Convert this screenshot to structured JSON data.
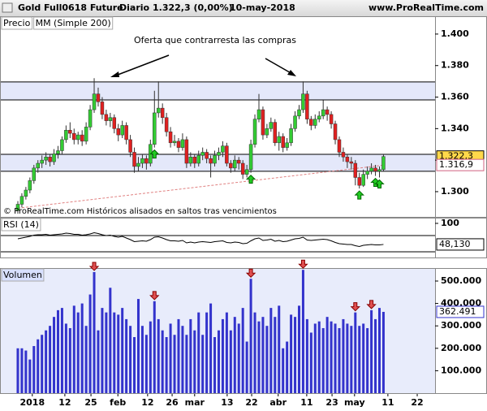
{
  "header": {
    "title": "Gold Full0618 Future",
    "period": "Diario",
    "quote": "1.322,3 (0,00%)",
    "date": "10-may-2018",
    "site": "www.ProRealTime.com"
  },
  "chart_data": [
    {
      "type": "candlestick",
      "label": "Precio",
      "ma_label": "MM (Simple 200)",
      "annotation": "Oferta que contrarresta las compras",
      "footer": "© ProRealTime.com Históricos alisados en saltos tras vencimientos",
      "up_color": "#33cc33",
      "down_color": "#e02020",
      "ma_color": "#e08080",
      "band_color": "#e4e8fa",
      "ohlc": [
        [
          1.288,
          1.294,
          1.286,
          1.292
        ],
        [
          1.292,
          1.299,
          1.29,
          1.297
        ],
        [
          1.297,
          1.303,
          1.295,
          1.301
        ],
        [
          1.301,
          1.309,
          1.299,
          1.307
        ],
        [
          1.307,
          1.317,
          1.305,
          1.315
        ],
        [
          1.315,
          1.32,
          1.312,
          1.318
        ],
        [
          1.318,
          1.323,
          1.315,
          1.32
        ],
        [
          1.32,
          1.325,
          1.317,
          1.322
        ],
        [
          1.322,
          1.324,
          1.316,
          1.319
        ],
        [
          1.319,
          1.327,
          1.317,
          1.324
        ],
        [
          1.324,
          1.329,
          1.321,
          1.326
        ],
        [
          1.326,
          1.335,
          1.324,
          1.333
        ],
        [
          1.333,
          1.342,
          1.331,
          1.339
        ],
        [
          1.339,
          1.344,
          1.334,
          1.337
        ],
        [
          1.337,
          1.34,
          1.33,
          1.333
        ],
        [
          1.333,
          1.338,
          1.33,
          1.336
        ],
        [
          1.336,
          1.339,
          1.329,
          1.332
        ],
        [
          1.332,
          1.344,
          1.33,
          1.341
        ],
        [
          1.341,
          1.355,
          1.339,
          1.352
        ],
        [
          1.352,
          1.372,
          1.35,
          1.362
        ],
        [
          1.362,
          1.366,
          1.354,
          1.357
        ],
        [
          1.357,
          1.36,
          1.346,
          1.349
        ],
        [
          1.349,
          1.352,
          1.342,
          1.345
        ],
        [
          1.345,
          1.35,
          1.341,
          1.347
        ],
        [
          1.347,
          1.349,
          1.337,
          1.34
        ],
        [
          1.34,
          1.343,
          1.332,
          1.336
        ],
        [
          1.336,
          1.345,
          1.334,
          1.342
        ],
        [
          1.342,
          1.344,
          1.33,
          1.333
        ],
        [
          1.333,
          1.336,
          1.322,
          1.325
        ],
        [
          1.325,
          1.328,
          1.312,
          1.316
        ],
        [
          1.316,
          1.322,
          1.313,
          1.318
        ],
        [
          1.318,
          1.324,
          1.315,
          1.321
        ],
        [
          1.321,
          1.323,
          1.314,
          1.318
        ],
        [
          1.318,
          1.333,
          1.316,
          1.33
        ],
        [
          1.33,
          1.364,
          1.328,
          1.35
        ],
        [
          1.35,
          1.37,
          1.347,
          1.353
        ],
        [
          1.353,
          1.356,
          1.343,
          1.347
        ],
        [
          1.347,
          1.35,
          1.335,
          1.338
        ],
        [
          1.338,
          1.341,
          1.328,
          1.331
        ],
        [
          1.331,
          1.336,
          1.329,
          1.332
        ],
        [
          1.332,
          1.334,
          1.325,
          1.328
        ],
        [
          1.328,
          1.337,
          1.326,
          1.333
        ],
        [
          1.333,
          1.335,
          1.315,
          1.318
        ],
        [
          1.318,
          1.325,
          1.316,
          1.322
        ],
        [
          1.322,
          1.324,
          1.315,
          1.318
        ],
        [
          1.318,
          1.326,
          1.316,
          1.323
        ],
        [
          1.323,
          1.328,
          1.32,
          1.325
        ],
        [
          1.325,
          1.327,
          1.318,
          1.321
        ],
        [
          1.321,
          1.323,
          1.309,
          1.318
        ],
        [
          1.318,
          1.326,
          1.316,
          1.323
        ],
        [
          1.323,
          1.328,
          1.32,
          1.325
        ],
        [
          1.325,
          1.332,
          1.322,
          1.329
        ],
        [
          1.329,
          1.331,
          1.316,
          1.318
        ],
        [
          1.318,
          1.32,
          1.312,
          1.315
        ],
        [
          1.315,
          1.323,
          1.313,
          1.32
        ],
        [
          1.32,
          1.322,
          1.314,
          1.318
        ],
        [
          1.318,
          1.32,
          1.308,
          1.311
        ],
        [
          1.311,
          1.317,
          1.309,
          1.314
        ],
        [
          1.314,
          1.333,
          1.312,
          1.33
        ],
        [
          1.33,
          1.349,
          1.328,
          1.346
        ],
        [
          1.346,
          1.362,
          1.344,
          1.352
        ],
        [
          1.352,
          1.354,
          1.333,
          1.336
        ],
        [
          1.336,
          1.343,
          1.334,
          1.34
        ],
        [
          1.34,
          1.347,
          1.338,
          1.344
        ],
        [
          1.344,
          1.346,
          1.329,
          1.331
        ],
        [
          1.331,
          1.338,
          1.326,
          1.335
        ],
        [
          1.335,
          1.337,
          1.325,
          1.328
        ],
        [
          1.328,
          1.334,
          1.326,
          1.331
        ],
        [
          1.331,
          1.343,
          1.329,
          1.34
        ],
        [
          1.34,
          1.351,
          1.338,
          1.348
        ],
        [
          1.348,
          1.355,
          1.346,
          1.352
        ],
        [
          1.352,
          1.37,
          1.35,
          1.362
        ],
        [
          1.362,
          1.364,
          1.343,
          1.346
        ],
        [
          1.346,
          1.348,
          1.339,
          1.342
        ],
        [
          1.342,
          1.349,
          1.34,
          1.346
        ],
        [
          1.346,
          1.351,
          1.344,
          1.348
        ],
        [
          1.348,
          1.358,
          1.346,
          1.352
        ],
        [
          1.352,
          1.354,
          1.345,
          1.349
        ],
        [
          1.349,
          1.351,
          1.34,
          1.343
        ],
        [
          1.343,
          1.345,
          1.33,
          1.333
        ],
        [
          1.333,
          1.335,
          1.322,
          1.325
        ],
        [
          1.325,
          1.328,
          1.319,
          1.322
        ],
        [
          1.322,
          1.324,
          1.315,
          1.319
        ],
        [
          1.319,
          1.322,
          1.314,
          1.318
        ],
        [
          1.318,
          1.32,
          1.304,
          1.309
        ],
        [
          1.309,
          1.312,
          1.302,
          1.304
        ],
        [
          1.304,
          1.314,
          1.303,
          1.311
        ],
        [
          1.311,
          1.316,
          1.308,
          1.313
        ],
        [
          1.313,
          1.318,
          1.311,
          1.315
        ],
        [
          1.315,
          1.317,
          1.31,
          1.313
        ],
        [
          1.313,
          1.316,
          1.309,
          1.314
        ],
        [
          1.314,
          1.324,
          1.313,
          1.3223
        ]
      ],
      "ma": [
        1.2895,
        1.2898,
        1.2901,
        1.2904,
        1.2907,
        1.291,
        1.2913,
        1.2916,
        1.2919,
        1.2922,
        1.2925,
        1.2928,
        1.2931,
        1.2934,
        1.2937,
        1.294,
        1.2943,
        1.2946,
        1.2949,
        1.2952,
        1.2955,
        1.2958,
        1.2961,
        1.2964,
        1.2967,
        1.297,
        1.2973,
        1.2976,
        1.2979,
        1.2982,
        1.2985,
        1.2988,
        1.2991,
        1.2994,
        1.2997,
        1.3,
        1.3003,
        1.3006,
        1.3009,
        1.3012,
        1.3015,
        1.3018,
        1.3021,
        1.3024,
        1.3027,
        1.303,
        1.3033,
        1.3036,
        1.3039,
        1.3042,
        1.3045,
        1.3048,
        1.3051,
        1.3054,
        1.3057,
        1.306,
        1.3063,
        1.3066,
        1.3069,
        1.3072,
        1.3075,
        1.3078,
        1.3081,
        1.3084,
        1.3087,
        1.309,
        1.3093,
        1.3096,
        1.3099,
        1.3102,
        1.3105,
        1.3108,
        1.3111,
        1.3114,
        1.3117,
        1.312,
        1.3123,
        1.3126,
        1.3129,
        1.3132,
        1.3135,
        1.3138,
        1.3141,
        1.3144,
        1.3147,
        1.315,
        1.3153,
        1.3156,
        1.3159,
        1.3162,
        1.3165,
        1.3169
      ],
      "levels": [
        1.3696,
        1.3582,
        1.3237,
        1.3129
      ],
      "signals": [
        34,
        58,
        85,
        89,
        90
      ],
      "price_tags": [
        {
          "value": 1.3223,
          "label": "1.322,3"
        },
        {
          "value": 1.3169,
          "label": "1.316,9"
        }
      ],
      "ylim": [
        1.284,
        1.4113
      ],
      "yticks": [
        {
          "value": 1.3,
          "label": "1.300"
        },
        {
          "value": 1.32,
          "label": "1.320"
        },
        {
          "value": 1.34,
          "label": "1.340"
        },
        {
          "value": 1.36,
          "label": "1.360"
        },
        {
          "value": 1.38,
          "label": "1.380"
        },
        {
          "value": 1.4,
          "label": "1.400"
        }
      ],
      "xlim": [
        -4.44,
        103.84
      ],
      "xticks": [
        {
          "value": 3.6,
          "label": "2018"
        },
        {
          "value": 11.7,
          "label": "12"
        },
        {
          "value": 18.2,
          "label": "25"
        },
        {
          "value": 24.9,
          "label": "feb"
        },
        {
          "value": 32.3,
          "label": "12"
        },
        {
          "value": 38.4,
          "label": "26"
        },
        {
          "value": 44,
          "label": "mar"
        },
        {
          "value": 52.1,
          "label": "13"
        },
        {
          "value": 58.2,
          "label": "22"
        },
        {
          "value": 64.8,
          "label": "abr"
        },
        {
          "value": 71.9,
          "label": "11"
        },
        {
          "value": 78.2,
          "label": "23"
        },
        {
          "value": 83.8,
          "label": "may"
        },
        {
          "value": 92.1,
          "label": "11"
        },
        {
          "value": 99.4,
          "label": "22"
        }
      ]
    },
    {
      "type": "line",
      "label": "RSI (14)",
      "color": "#000000",
      "values": [
        62,
        64,
        66,
        68,
        71,
        72,
        72,
        73,
        71,
        72,
        73,
        74,
        76,
        75,
        73,
        73,
        71,
        72,
        74,
        77,
        75,
        72,
        70,
        71,
        68,
        66,
        68,
        64,
        60,
        55,
        56,
        57,
        56,
        60,
        66,
        67,
        64,
        60,
        57,
        57,
        56,
        58,
        52,
        54,
        52,
        54,
        55,
        54,
        53,
        55,
        56,
        57,
        53,
        52,
        54,
        53,
        50,
        51,
        57,
        62,
        64,
        58,
        59,
        61,
        56,
        58,
        55,
        56,
        59,
        62,
        63,
        66,
        59,
        58,
        59,
        60,
        61,
        60,
        57,
        53,
        50,
        49,
        48,
        48,
        45,
        43,
        46,
        47,
        48,
        47,
        47,
        48.13
      ],
      "levels": [
        70,
        30
      ],
      "ylim": [
        16,
        114
      ],
      "yticks": [
        100
      ],
      "last_label": {
        "value": 48.13,
        "label": "48,130"
      }
    },
    {
      "type": "bar",
      "label": "Volumen",
      "color": "#3333cc",
      "down_color": "#e05050",
      "values": [
        200000,
        200000,
        190000,
        150000,
        210000,
        240000,
        260000,
        280000,
        300000,
        340000,
        370000,
        380000,
        310000,
        290000,
        390000,
        360000,
        400000,
        300000,
        440000,
        540000,
        280000,
        380000,
        360000,
        470000,
        360000,
        350000,
        380000,
        330000,
        300000,
        250000,
        420000,
        300000,
        260000,
        320000,
        410000,
        330000,
        280000,
        250000,
        310000,
        260000,
        330000,
        300000,
        260000,
        330000,
        280000,
        360000,
        260000,
        360000,
        400000,
        250000,
        280000,
        330000,
        360000,
        280000,
        340000,
        310000,
        380000,
        230000,
        510000,
        360000,
        320000,
        340000,
        300000,
        380000,
        340000,
        390000,
        200000,
        230000,
        350000,
        340000,
        390000,
        550000,
        330000,
        270000,
        310000,
        320000,
        290000,
        340000,
        320000,
        310000,
        290000,
        330000,
        310000,
        300000,
        360000,
        300000,
        310000,
        290000,
        370000,
        330000,
        380000,
        362491
      ],
      "signals": [
        19,
        34,
        58,
        71,
        84,
        88
      ],
      "ylim": [
        0,
        558000
      ],
      "yticks": [
        {
          "value": 100000,
          "label": "100.000"
        },
        {
          "value": 200000,
          "label": "200.000"
        },
        {
          "value": 300000,
          "label": "300.000"
        },
        {
          "value": 400000,
          "label": "400.000"
        },
        {
          "value": 500000,
          "label": "500.000"
        }
      ],
      "last_label": {
        "value": 362491,
        "label": "362.491"
      }
    }
  ]
}
